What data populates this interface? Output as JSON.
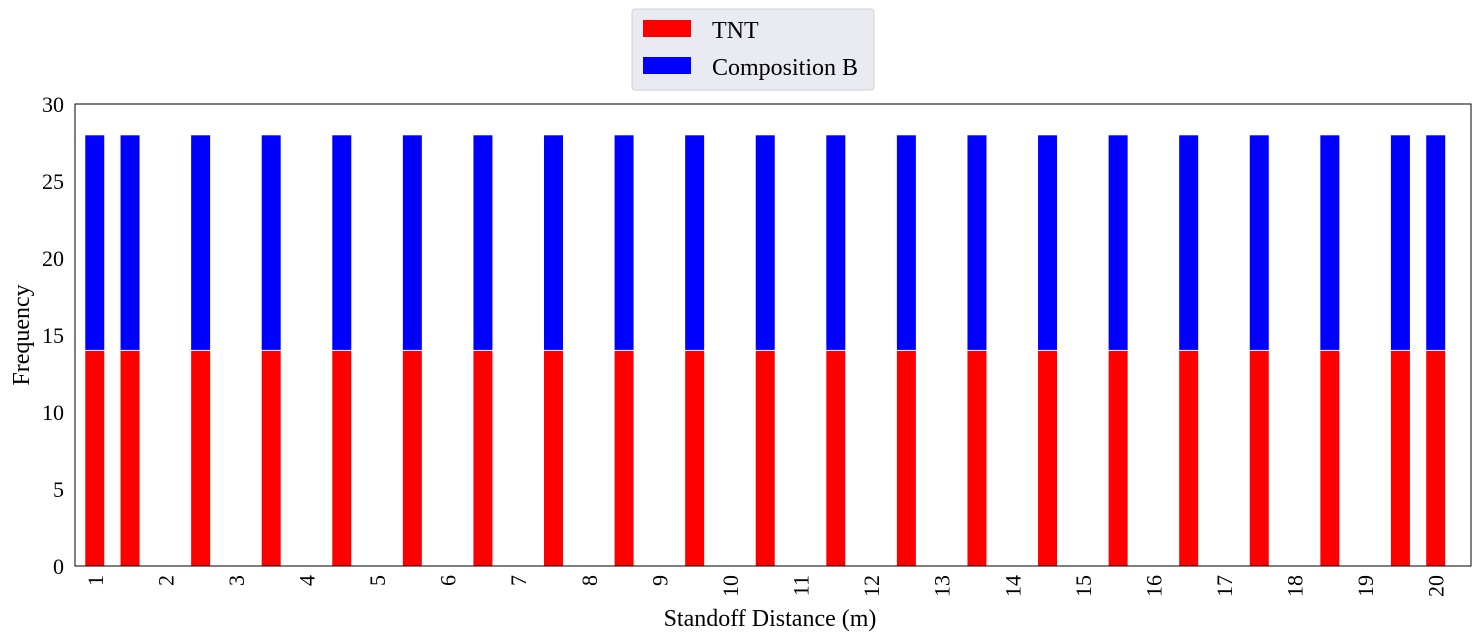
{
  "chart_data": {
    "type": "bar",
    "stacked": true,
    "title": "",
    "xlabel": "Standoff Distance (m)",
    "ylabel": "Frequency",
    "ylim": [
      0,
      30
    ],
    "yticks": [
      0,
      5,
      10,
      15,
      20,
      25,
      30
    ],
    "xtick_labels": [
      "1",
      "2",
      "3",
      "4",
      "5",
      "6",
      "7",
      "8",
      "9",
      "10",
      "11",
      "12",
      "13",
      "14",
      "15",
      "16",
      "17",
      "18",
      "19",
      "20"
    ],
    "xtick_rotation": "vertical",
    "bar_x": [
      1,
      1.5,
      2.5,
      3.5,
      4.5,
      5.5,
      6.5,
      7.5,
      8.5,
      9.5,
      10.5,
      11.5,
      12.5,
      13.5,
      14.5,
      15.5,
      16.5,
      17.5,
      18.5,
      19.5,
      20
    ],
    "x_range": [
      0.72,
      20.5
    ],
    "series": [
      {
        "name": "TNT",
        "color": "#ff0000",
        "values": [
          14,
          14,
          14,
          14,
          14,
          14,
          14,
          14,
          14,
          14,
          14,
          14,
          14,
          14,
          14,
          14,
          14,
          14,
          14,
          14,
          14
        ]
      },
      {
        "name": "Composition B",
        "color": "#0000ff",
        "values": [
          14,
          14,
          14,
          14,
          14,
          14,
          14,
          14,
          14,
          14,
          14,
          14,
          14,
          14,
          14,
          14,
          14,
          14,
          14,
          14,
          14
        ]
      }
    ],
    "grid": false,
    "legend": {
      "placement": "top-center, outside plot",
      "background": "#eaeaf2"
    }
  }
}
